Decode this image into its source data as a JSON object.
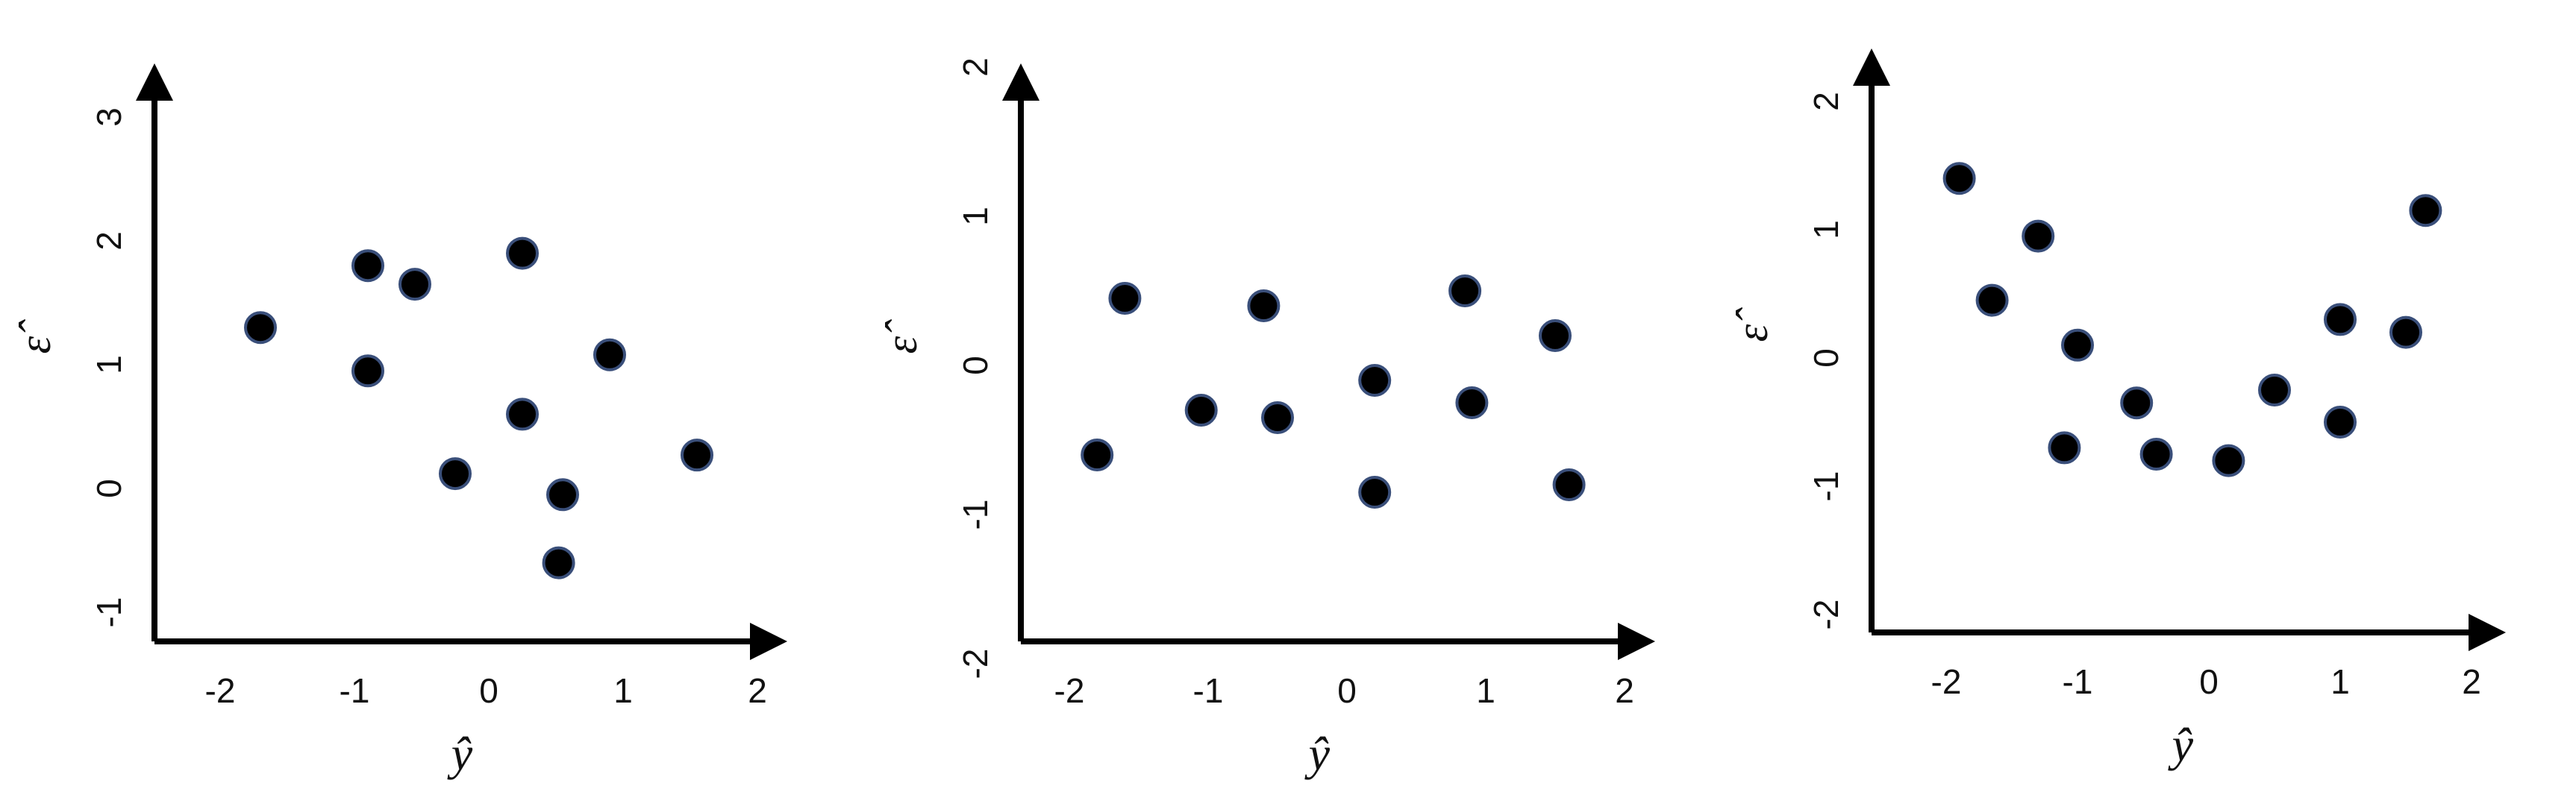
{
  "colors": {
    "axis": "#000000",
    "point_fill": "#000000",
    "point_stroke": "#3a4f7a",
    "background": "#ffffff"
  },
  "chart_data": [
    {
      "type": "scatter",
      "xlabel": "ŷ",
      "ylabel": "ε̂",
      "xlim": [
        -2.4,
        2.4
      ],
      "ylim": [
        -1.1,
        3.2
      ],
      "xticks": [
        "-2",
        "-1",
        "0",
        "1",
        "2"
      ],
      "xtick_values": [
        -2,
        -1,
        0,
        1,
        2
      ],
      "yticks": [
        "-1",
        "0",
        "1",
        "2",
        "3"
      ],
      "ytick_values": [
        -1,
        0,
        1,
        2,
        3
      ],
      "grid": false,
      "points": [
        {
          "x": -1.7,
          "y": 1.3
        },
        {
          "x": -0.9,
          "y": 1.8
        },
        {
          "x": -0.9,
          "y": 0.95
        },
        {
          "x": -0.55,
          "y": 1.65
        },
        {
          "x": -0.25,
          "y": 0.12
        },
        {
          "x": 0.25,
          "y": 1.9
        },
        {
          "x": 0.25,
          "y": 0.6
        },
        {
          "x": 0.55,
          "y": -0.05
        },
        {
          "x": 0.52,
          "y": -0.6
        },
        {
          "x": 0.9,
          "y": 1.08
        },
        {
          "x": 1.55,
          "y": 0.27
        }
      ]
    },
    {
      "type": "scatter",
      "xlabel": "ŷ",
      "ylabel": "ε̂",
      "xlim": [
        -2.4,
        2.4
      ],
      "ylim": [
        -2.0,
        2.5
      ],
      "xticks": [
        "-2",
        "-1",
        "0",
        "1",
        "2"
      ],
      "xtick_values": [
        -2,
        -1,
        0,
        1,
        2
      ],
      "yticks": [
        "-2",
        "-1",
        "0",
        "1",
        "2"
      ],
      "ytick_values": [
        -2,
        -1,
        0,
        1,
        2
      ],
      "grid": false,
      "points": [
        {
          "x": -1.8,
          "y": -0.6
        },
        {
          "x": -1.6,
          "y": 0.45
        },
        {
          "x": -1.05,
          "y": -0.3
        },
        {
          "x": -0.6,
          "y": 0.4
        },
        {
          "x": -0.5,
          "y": -0.35
        },
        {
          "x": 0.2,
          "y": -0.1
        },
        {
          "x": 0.2,
          "y": -0.85
        },
        {
          "x": 0.85,
          "y": 0.5
        },
        {
          "x": 0.9,
          "y": -0.25
        },
        {
          "x": 1.5,
          "y": 0.2
        },
        {
          "x": 1.6,
          "y": -0.8
        }
      ]
    },
    {
      "type": "scatter",
      "xlabel": "ŷ",
      "ylabel": "ε̂",
      "xlim": [
        -2.4,
        2.4
      ],
      "ylim": [
        -2.0,
        2.4
      ],
      "xticks": [
        "-2",
        "-1",
        "0",
        "1",
        "2"
      ],
      "xtick_values": [
        -2,
        -1,
        0,
        1,
        2
      ],
      "yticks": [
        "-2",
        "-1",
        "0",
        "1",
        "2"
      ],
      "ytick_values": [
        -2,
        -1,
        0,
        1,
        2
      ],
      "grid": false,
      "points": [
        {
          "x": -1.9,
          "y": 1.4
        },
        {
          "x": -1.65,
          "y": 0.45
        },
        {
          "x": -1.3,
          "y": 0.95
        },
        {
          "x": -1.0,
          "y": 0.1
        },
        {
          "x": -1.1,
          "y": -0.7
        },
        {
          "x": -0.55,
          "y": -0.35
        },
        {
          "x": -0.4,
          "y": -0.75
        },
        {
          "x": 0.15,
          "y": -0.8
        },
        {
          "x": 0.5,
          "y": -0.25
        },
        {
          "x": 1.0,
          "y": 0.3
        },
        {
          "x": 1.0,
          "y": -0.5
        },
        {
          "x": 1.5,
          "y": 0.2
        },
        {
          "x": 1.65,
          "y": 1.15
        }
      ]
    }
  ]
}
